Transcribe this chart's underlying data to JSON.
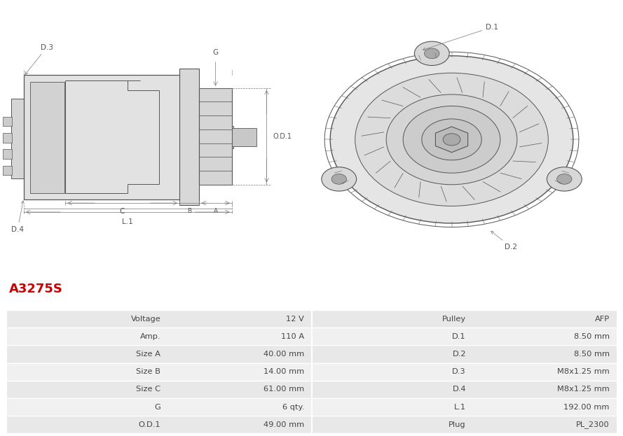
{
  "title": "A3275S",
  "title_color": "#cc0000",
  "image_bg": "#ffffff",
  "table_rows": [
    [
      "Voltage",
      "12 V",
      "Pulley",
      "AFP"
    ],
    [
      "Amp.",
      "110 A",
      "D.1",
      "8.50 mm"
    ],
    [
      "Size A",
      "40.00 mm",
      "D.2",
      "8.50 mm"
    ],
    [
      "Size B",
      "14.00 mm",
      "D.3",
      "M8x1.25 mm"
    ],
    [
      "Size C",
      "61.00 mm",
      "D.4",
      "M8x1.25 mm"
    ],
    [
      "G",
      "6 qty.",
      "L.1",
      "192.00 mm"
    ],
    [
      "O.D.1",
      "49.00 mm",
      "Plug",
      "PL_2300"
    ]
  ],
  "row_bg_odd": "#e8e8e8",
  "row_bg_even": "#f0f0f0",
  "border_color": "#ffffff",
  "text_color": "#444444",
  "fig_width": 8.89,
  "fig_height": 6.23
}
